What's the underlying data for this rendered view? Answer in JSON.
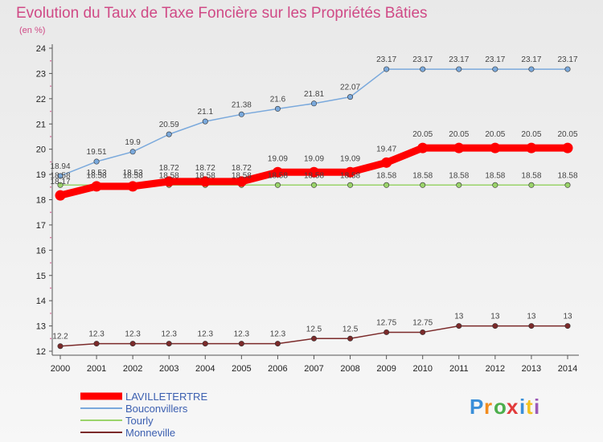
{
  "chart_data": {
    "type": "line",
    "title": "Evolution du Taux de Taxe Foncière sur les Propriétés Bâties",
    "subtitle": "(en %)",
    "xlabel": "",
    "ylabel": "",
    "x": [
      "2000",
      "2001",
      "2002",
      "2003",
      "2004",
      "2005",
      "2006",
      "2007",
      "2008",
      "2009",
      "2010",
      "2011",
      "2012",
      "2013",
      "2014"
    ],
    "ylim": [
      12,
      24
    ],
    "yticks": [
      "12",
      "13",
      "14",
      "15",
      "16",
      "17",
      "18",
      "19",
      "20",
      "21",
      "22",
      "23",
      "24"
    ],
    "legend_position": "bottom-left",
    "series": [
      {
        "name": "LAVILLETERTRE",
        "color": "#ff0000",
        "emphasis": true,
        "values": [
          18.17,
          18.53,
          18.53,
          18.72,
          18.72,
          18.72,
          19.09,
          19.09,
          19.09,
          19.47,
          20.05,
          20.05,
          20.05,
          20.05,
          20.05
        ],
        "labels": [
          "18.17",
          "18.53",
          "18.53",
          "18.72",
          "18.72",
          "18.72",
          "19.09",
          "19.09",
          "19.09",
          "19.47",
          "20.05",
          "20.05",
          "20.05",
          "20.05",
          "20.05"
        ]
      },
      {
        "name": "Bouconvillers",
        "color": "#7aa9dc",
        "values": [
          18.94,
          19.51,
          19.9,
          20.59,
          21.1,
          21.38,
          21.6,
          21.81,
          22.07,
          23.17,
          23.17,
          23.17,
          23.17,
          23.17,
          23.17
        ],
        "labels": [
          "18.94",
          "19.51",
          "19.9",
          "20.59",
          "21.1",
          "21.38",
          "21.6",
          "21.81",
          "22.07",
          "23.17",
          "23.17",
          "23.17",
          "23.17",
          "23.17",
          "23.17"
        ]
      },
      {
        "name": "Tourly",
        "color": "#9ad36a",
        "values": [
          18.58,
          18.58,
          18.58,
          18.58,
          18.58,
          18.58,
          18.58,
          18.58,
          18.58,
          18.58,
          18.58,
          18.58,
          18.58,
          18.58,
          18.58
        ],
        "labels": [
          "18.58",
          "18.58",
          "18.58",
          "18.58",
          "18.58",
          "18.58",
          "18.58",
          "18.58",
          "18.58",
          "18.58",
          "18.58",
          "18.58",
          "18.58",
          "18.58",
          "18.58"
        ]
      },
      {
        "name": "Monneville",
        "color": "#7b2a2a",
        "values": [
          12.2,
          12.3,
          12.3,
          12.3,
          12.3,
          12.3,
          12.3,
          12.5,
          12.5,
          12.75,
          12.75,
          13,
          13,
          13,
          13
        ],
        "labels": [
          "12.2",
          "12.3",
          "12.3",
          "12.3",
          "12.3",
          "12.3",
          "12.3",
          "12.5",
          "12.5",
          "12.75",
          "12.75",
          "13",
          "13",
          "13",
          "13"
        ]
      }
    ]
  },
  "logo": {
    "letters": [
      "P",
      "r",
      "o",
      "x",
      "i",
      "t",
      "i"
    ],
    "colors": [
      "#3a8fd9",
      "#f28c1e",
      "#4cae4c",
      "#e23b3b",
      "#3a8fd9",
      "#f2c21e",
      "#9b59b6"
    ]
  }
}
